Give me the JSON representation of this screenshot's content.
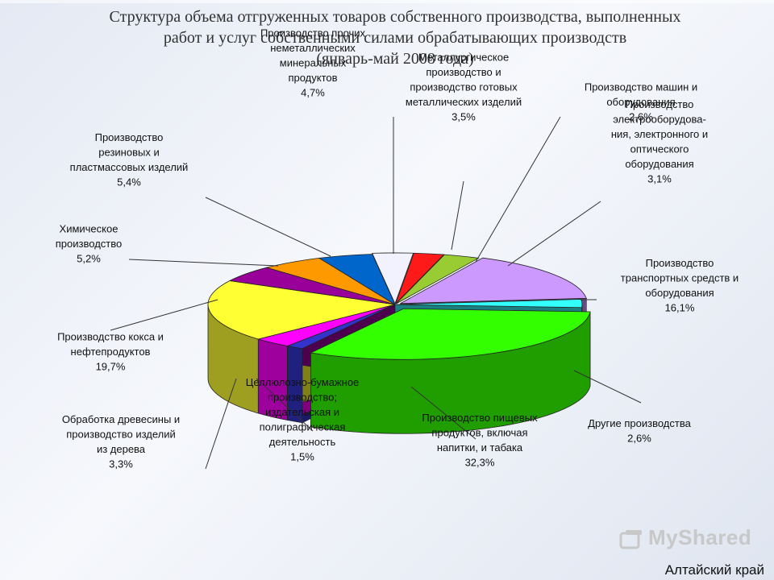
{
  "title": {
    "line1": "Структура объема отгруженных товаров собственного производства, выполненных",
    "line2": "работ и услуг собственными силами обрабатывающих  производств",
    "line3": "(январь-май 2008 года)"
  },
  "chart_data": {
    "type": "pie",
    "style": "3d-exploded",
    "title": "Структура объема отгруженных товаров собственного производства, выполненных работ и услуг собственными силами обрабатывающих  производств (январь-май 2008 года)",
    "slices": [
      {
        "label_lines": [
          "Металлургическое",
          "производство и",
          "производство готовых",
          "металлических изделий"
        ],
        "value": 3.5,
        "value_label": "3,5%",
        "color": "#f2f2ff"
      },
      {
        "label_lines": [
          "Производство машин и",
          "оборудования"
        ],
        "value": 2.6,
        "value_label": "2,6%",
        "color": "#ff1a1a"
      },
      {
        "label_lines": [
          "Производство",
          "электрооборудова-",
          "ния, электронного и",
          "оптического",
          "оборудования"
        ],
        "value": 3.1,
        "value_label": "3,1%",
        "color": "#99cc33"
      },
      {
        "label_lines": [
          "Производство",
          "транспортных средств и",
          "оборудования"
        ],
        "value": 16.1,
        "value_label": "16,1%",
        "color": "#cc99ff"
      },
      {
        "label_lines": [
          "Другие производства"
        ],
        "value": 2.6,
        "value_label": "2,6%",
        "color": "#33ffff"
      },
      {
        "label_lines": [
          "Производство пищевых",
          "продуктов, включая",
          "напитки, и табака"
        ],
        "value": 32.3,
        "value_label": "32,3%",
        "color": "#33ff00"
      },
      {
        "label_lines": [
          "Целлюлозно-бумажное",
          "производство;",
          "издательская и",
          "полиграфическая",
          "деятельность"
        ],
        "value": 1.5,
        "value_label": "1,5%",
        "color": "#3333cc"
      },
      {
        "label_lines": [
          "Обработка древесины и",
          "производство изделий",
          "из дерева"
        ],
        "value": 3.3,
        "value_label": "3,3%",
        "color": "#ff00ff"
      },
      {
        "label_lines": [
          "Производство кокса и",
          "нефтепродуктов"
        ],
        "value": 19.7,
        "value_label": "19,7%",
        "color": "#ffff33"
      },
      {
        "label_lines": [
          "Химическое",
          "производство"
        ],
        "value": 5.2,
        "value_label": "5,2%",
        "color": "#990099"
      },
      {
        "label_lines": [
          "Производство",
          "резиновых и",
          "пластмассовых изделий"
        ],
        "value": 5.4,
        "value_label": "5,4%",
        "color": "#ff9900"
      },
      {
        "label_lines": [
          "Производство прочих",
          "неметаллических",
          "минеральных",
          "продуктов"
        ],
        "value": 4.7,
        "value_label": "4,7%",
        "color": "#0066cc"
      }
    ]
  },
  "footer": {
    "watermark": "MyShared",
    "region": "Алтайский край"
  }
}
